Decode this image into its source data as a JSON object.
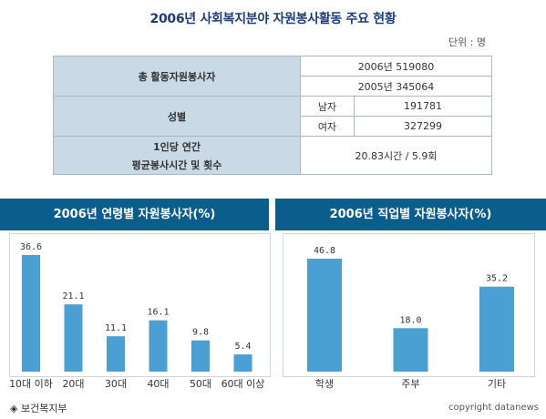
{
  "title": "2006년 사회복지분야 자원봉사활동 주요 현황",
  "unit": "단위 : 명",
  "summary": {
    "total_label": "총 활동자원봉사자",
    "total_2006": "2006년 519080",
    "total_2005": "2005년 345064",
    "gender_label": "성별",
    "male_label": "남자",
    "male_value": "191781",
    "female_label": "여자",
    "female_value": "327299",
    "per_person_label_1": "1인당 연간",
    "per_person_label_2": "평균봉사시간 및 횟수",
    "per_person_value": "20.83시간 / 5.9회"
  },
  "colors": {
    "bar": "#4ba0d3",
    "header_bar": "#0b5d8c",
    "cell_header": "#c9d9e6"
  },
  "chart_data": [
    {
      "type": "bar",
      "title": "2006년 연령별 자원봉사자(%)",
      "categories": [
        "10대 이하",
        "20대",
        "30대",
        "40대",
        "50대",
        "60대 이상"
      ],
      "values": [
        36.6,
        21.1,
        11.1,
        16.1,
        9.8,
        5.4
      ],
      "labels": [
        "36.6",
        "21.1",
        "11.1",
        "16.1",
        "9.8",
        "5.4"
      ],
      "ylim": [
        0,
        40
      ]
    },
    {
      "type": "bar",
      "title": "2006년 직업별 자원봉사자(%)",
      "categories": [
        "학생",
        "주부",
        "기타"
      ],
      "values": [
        46.8,
        18.0,
        35.2
      ],
      "labels": [
        "46.8",
        "18.0",
        "35.2"
      ],
      "ylim": [
        0,
        50
      ]
    }
  ],
  "source": "◈ 보건복지부",
  "copyright": "copyright datanews"
}
